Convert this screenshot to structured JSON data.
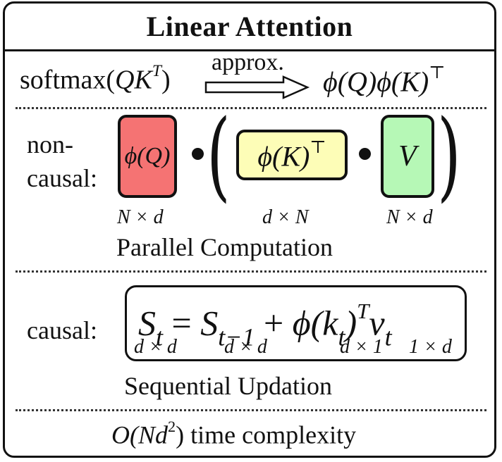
{
  "title": "Linear Attention",
  "approx": {
    "softmax": "softmax(",
    "qk": "QK",
    "qk_sup": "T",
    "close": ")",
    "arrow_label": "approx.",
    "phi_q": "ϕ(Q)ϕ(K)",
    "phi_sup": "⊤"
  },
  "noncausal": {
    "label_line1": "non-",
    "label_line2": "causal:",
    "phi_q": "ϕ(Q)",
    "phi_k": "ϕ(K)",
    "phi_k_sup": "⊤",
    "v": "V",
    "dim_q": "N × d",
    "dim_k": "d × N",
    "dim_v": "N × d",
    "caption": "Parallel Computation"
  },
  "causal": {
    "label": "causal:",
    "s": "S",
    "s_sub": "t",
    "eq": "=",
    "s_prev_sub": "t−1",
    "plus": "+",
    "phi": "ϕ(k",
    "phi_sub": "t",
    "phi_close": ")",
    "phi_sup": "T",
    "v": "v",
    "v_sub": "t",
    "dim_s": "d × d",
    "dim_s_prev": "d × d",
    "dim_phi": "d × 1",
    "dim_v": "1 × d",
    "caption": "Sequential Updation"
  },
  "complexity": {
    "big_o": "O(Nd",
    "exp": "2",
    "close": ")",
    "text": "time complexity"
  },
  "colors": {
    "phi_q_fill": "#f57373",
    "phi_k_fill": "#fdfdb7",
    "v_fill": "#b6f8b6"
  }
}
